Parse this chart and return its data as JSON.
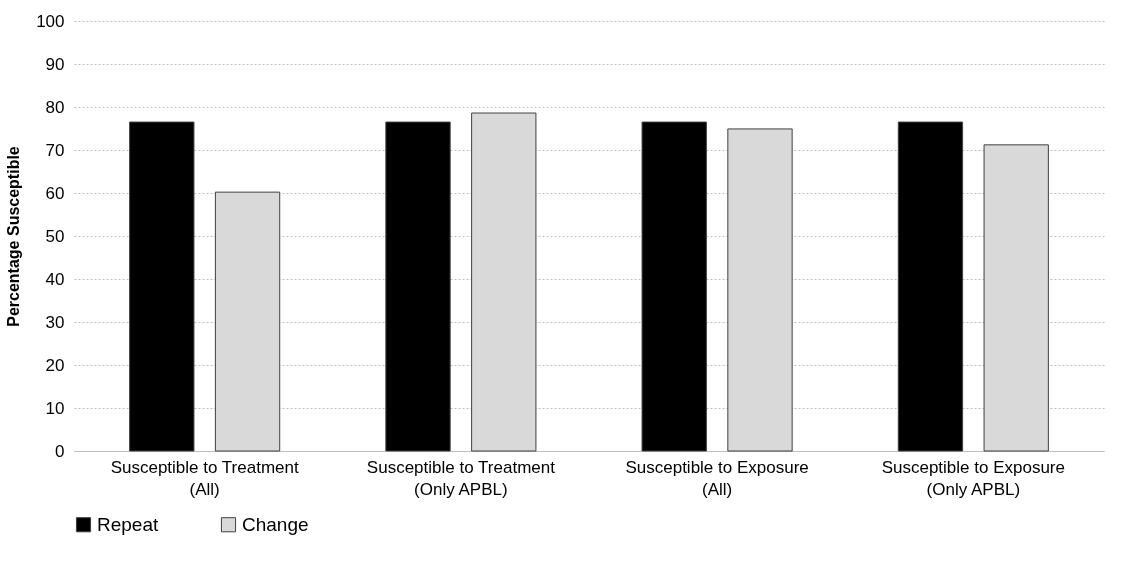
{
  "chart_data": {
    "type": "bar",
    "ylabel": "Percentage Susceptible",
    "categories": [
      "Susceptible to Treatment (All)",
      "Susceptible to Treatment (Only APBL)",
      "Susceptible to Exposure (All)",
      "Susceptible to Exposure (Only APBL)"
    ],
    "series": [
      {
        "name": "Repeat",
        "color": "#000000",
        "values": [
          76.5,
          76.5,
          76.5,
          76.5
        ]
      },
      {
        "name": "Change",
        "color": "#d9d9d9",
        "values": [
          60.2,
          78.6,
          74.9,
          71.2
        ]
      }
    ],
    "ylim": [
      0,
      100
    ],
    "yticks": [
      0,
      10,
      20,
      30,
      40,
      50,
      60,
      70,
      80,
      90,
      100
    ],
    "grid": "y",
    "legend": "bottom"
  }
}
